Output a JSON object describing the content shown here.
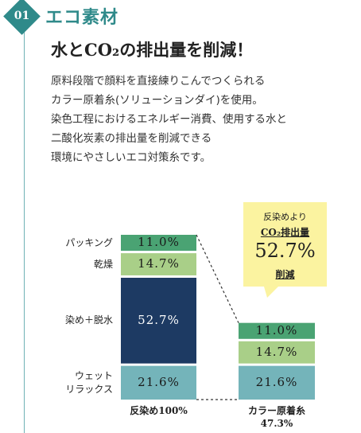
{
  "section": {
    "number": "01",
    "title": "エコ素材"
  },
  "heading": "水とCO₂の排出量を削減！",
  "body_lines": [
    "原料段階で顔料を直接練りこんでつくられる",
    "カラー原着糸(ソリューションダイ)を使用。",
    "染色工程におけるエネルギー消費、使用する水と",
    "二酸化炭素の排出量を削減できる",
    "環境にやさしいエコ対策糸です。"
  ],
  "colors": {
    "accent": "#2f8a8a",
    "packing": "#4aa373",
    "drying": "#a9cf88",
    "dyeing": "#1d3a63",
    "wet": "#74b4ba",
    "callout": "#fbf3a0"
  },
  "chart_data": {
    "type": "bar",
    "stacked": true,
    "categories": [
      "反染め100%",
      "カラー原着糸\n47.3%"
    ],
    "series": [
      {
        "name": "ウェット\nリラックス",
        "values": [
          21.6,
          21.6
        ],
        "labels": [
          "21.6%",
          "21.6%"
        ]
      },
      {
        "name": "染め＋脱水",
        "values": [
          52.7,
          0
        ],
        "labels": [
          "52.7%",
          ""
        ]
      },
      {
        "name": "乾燥",
        "values": [
          14.7,
          14.7
        ],
        "labels": [
          "14.7%",
          "14.7%"
        ]
      },
      {
        "name": "パッキング",
        "values": [
          11.0,
          11.0
        ],
        "labels": [
          "11.0%",
          "11.0%"
        ]
      }
    ],
    "totals": [
      100,
      47.3
    ],
    "annotation": {
      "line1": "反染めより",
      "line2": "CO₂排出量",
      "value": "52.7%",
      "line3": "削減"
    }
  }
}
